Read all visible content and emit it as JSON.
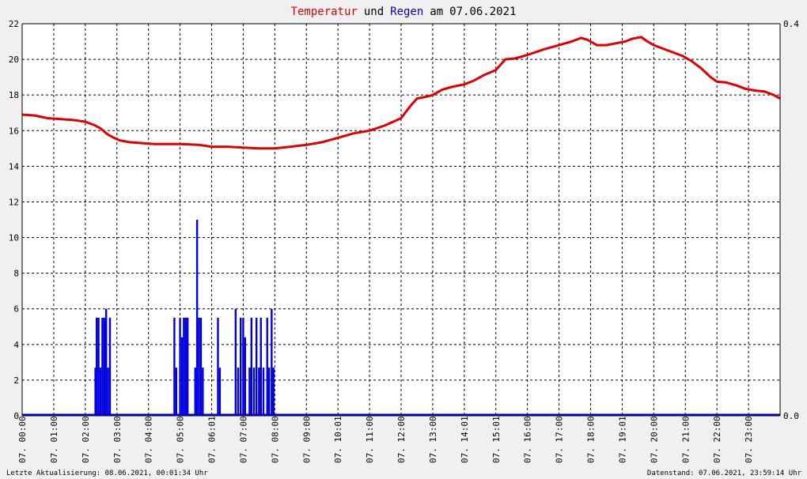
{
  "chart_data": {
    "type": "line",
    "title_parts": {
      "temp": "Temperatur",
      "und": "und",
      "rain": "Regen",
      "am": "am",
      "date": "07.06.2021"
    },
    "colors": {
      "temperature": "#e00000",
      "rain": "#0000e0",
      "axis": "#000000",
      "grid": "#000000"
    },
    "grid": true,
    "x_range_hours": [
      0,
      24
    ],
    "y_left_range": [
      0,
      22
    ],
    "y_right_range": [
      0,
      0.4
    ],
    "y_left_ticks": [
      "0",
      "2",
      "4",
      "6",
      "8",
      "10",
      "12",
      "14",
      "16",
      "18",
      "20",
      "22"
    ],
    "y_right_ticks": [
      "0.0",
      "0.4"
    ],
    "x_ticks": [
      {
        "label": "07. 00:00",
        "hour": 0
      },
      {
        "label": "07. 01:00",
        "hour": 1
      },
      {
        "label": "07. 02:00",
        "hour": 2
      },
      {
        "label": "07. 03:00",
        "hour": 3
      },
      {
        "label": "07. 04:00",
        "hour": 4
      },
      {
        "label": "07. 05:00",
        "hour": 5
      },
      {
        "label": "07. 06:01",
        "hour": 6
      },
      {
        "label": "07. 07:00",
        "hour": 7
      },
      {
        "label": "07. 08:00",
        "hour": 8
      },
      {
        "label": "07. 09:00",
        "hour": 9
      },
      {
        "label": "07. 10:01",
        "hour": 10
      },
      {
        "label": "07. 11:00",
        "hour": 11
      },
      {
        "label": "07. 12:00",
        "hour": 12
      },
      {
        "label": "07. 13:00",
        "hour": 13
      },
      {
        "label": "07. 14:01",
        "hour": 14
      },
      {
        "label": "07. 15:01",
        "hour": 15
      },
      {
        "label": "07. 16:00",
        "hour": 16
      },
      {
        "label": "07. 17:00",
        "hour": 17
      },
      {
        "label": "07. 18:00",
        "hour": 18
      },
      {
        "label": "07. 19:01",
        "hour": 19
      },
      {
        "label": "07. 20:00",
        "hour": 20
      },
      {
        "label": "07. 21:00",
        "hour": 21
      },
      {
        "label": "07. 22:00",
        "hour": 22
      },
      {
        "label": "07. 23:00",
        "hour": 23
      }
    ],
    "series": [
      {
        "key": "temperature",
        "axis": "left",
        "points": [
          [
            0.0,
            16.9
          ],
          [
            0.4,
            16.85
          ],
          [
            0.8,
            16.7
          ],
          [
            1.2,
            16.65
          ],
          [
            1.6,
            16.6
          ],
          [
            2.0,
            16.5
          ],
          [
            2.3,
            16.3
          ],
          [
            2.5,
            16.1
          ],
          [
            2.7,
            15.8
          ],
          [
            2.9,
            15.6
          ],
          [
            3.1,
            15.45
          ],
          [
            3.4,
            15.35
          ],
          [
            3.8,
            15.3
          ],
          [
            4.2,
            15.25
          ],
          [
            5.0,
            15.25
          ],
          [
            5.6,
            15.2
          ],
          [
            6.0,
            15.1
          ],
          [
            6.5,
            15.1
          ],
          [
            7.0,
            15.05
          ],
          [
            7.5,
            15.0
          ],
          [
            8.0,
            15.0
          ],
          [
            8.5,
            15.1
          ],
          [
            9.0,
            15.2
          ],
          [
            9.5,
            15.35
          ],
          [
            10.0,
            15.6
          ],
          [
            10.5,
            15.85
          ],
          [
            11.0,
            16.0
          ],
          [
            11.5,
            16.3
          ],
          [
            12.0,
            16.7
          ],
          [
            12.3,
            17.4
          ],
          [
            12.5,
            17.8
          ],
          [
            12.8,
            17.9
          ],
          [
            13.0,
            18.0
          ],
          [
            13.3,
            18.3
          ],
          [
            13.6,
            18.45
          ],
          [
            14.0,
            18.6
          ],
          [
            14.3,
            18.8
          ],
          [
            14.6,
            19.1
          ],
          [
            15.0,
            19.4
          ],
          [
            15.3,
            20.0
          ],
          [
            15.6,
            20.05
          ],
          [
            16.0,
            20.25
          ],
          [
            16.5,
            20.55
          ],
          [
            17.0,
            20.8
          ],
          [
            17.4,
            21.0
          ],
          [
            17.7,
            21.2
          ],
          [
            17.9,
            21.1
          ],
          [
            18.2,
            20.8
          ],
          [
            18.5,
            20.8
          ],
          [
            18.8,
            20.9
          ],
          [
            19.1,
            21.0
          ],
          [
            19.3,
            21.15
          ],
          [
            19.6,
            21.25
          ],
          [
            19.8,
            21.0
          ],
          [
            20.0,
            20.8
          ],
          [
            20.3,
            20.6
          ],
          [
            20.6,
            20.4
          ],
          [
            20.9,
            20.2
          ],
          [
            21.2,
            19.9
          ],
          [
            21.5,
            19.5
          ],
          [
            21.8,
            19.0
          ],
          [
            22.0,
            18.75
          ],
          [
            22.3,
            18.7
          ],
          [
            22.6,
            18.55
          ],
          [
            22.9,
            18.35
          ],
          [
            23.2,
            18.25
          ],
          [
            23.5,
            18.2
          ],
          [
            23.8,
            18.0
          ],
          [
            24.0,
            17.8
          ]
        ]
      },
      {
        "key": "rain",
        "axis": "left",
        "bars": [
          [
            2.32,
            2.7
          ],
          [
            2.36,
            5.5
          ],
          [
            2.42,
            5.5
          ],
          [
            2.48,
            2.7
          ],
          [
            2.54,
            5.5
          ],
          [
            2.6,
            5.5
          ],
          [
            2.66,
            6.0
          ],
          [
            2.72,
            2.7
          ],
          [
            2.78,
            5.5
          ],
          [
            4.82,
            5.5
          ],
          [
            4.88,
            2.7
          ],
          [
            5.0,
            5.5
          ],
          [
            5.06,
            4.4
          ],
          [
            5.12,
            5.5
          ],
          [
            5.18,
            5.5
          ],
          [
            5.24,
            5.5
          ],
          [
            5.48,
            2.7
          ],
          [
            5.54,
            11.0
          ],
          [
            5.6,
            5.5
          ],
          [
            5.66,
            5.5
          ],
          [
            5.72,
            2.7
          ],
          [
            6.2,
            5.5
          ],
          [
            6.26,
            2.7
          ],
          [
            6.76,
            6.0
          ],
          [
            6.84,
            2.7
          ],
          [
            6.92,
            5.5
          ],
          [
            7.0,
            5.5
          ],
          [
            7.06,
            4.4
          ],
          [
            7.2,
            2.7
          ],
          [
            7.26,
            5.5
          ],
          [
            7.34,
            2.7
          ],
          [
            7.42,
            5.5
          ],
          [
            7.5,
            2.7
          ],
          [
            7.56,
            5.5
          ],
          [
            7.64,
            2.7
          ],
          [
            7.76,
            5.5
          ],
          [
            7.82,
            2.7
          ],
          [
            7.9,
            6.0
          ],
          [
            7.96,
            2.7
          ]
        ]
      }
    ]
  },
  "footer": {
    "left": "Letzte Aktualisierung: 08.06.2021, 00:01:34 Uhr",
    "right": "Datenstand: 07.06.2021, 23:59:14 Uhr"
  }
}
